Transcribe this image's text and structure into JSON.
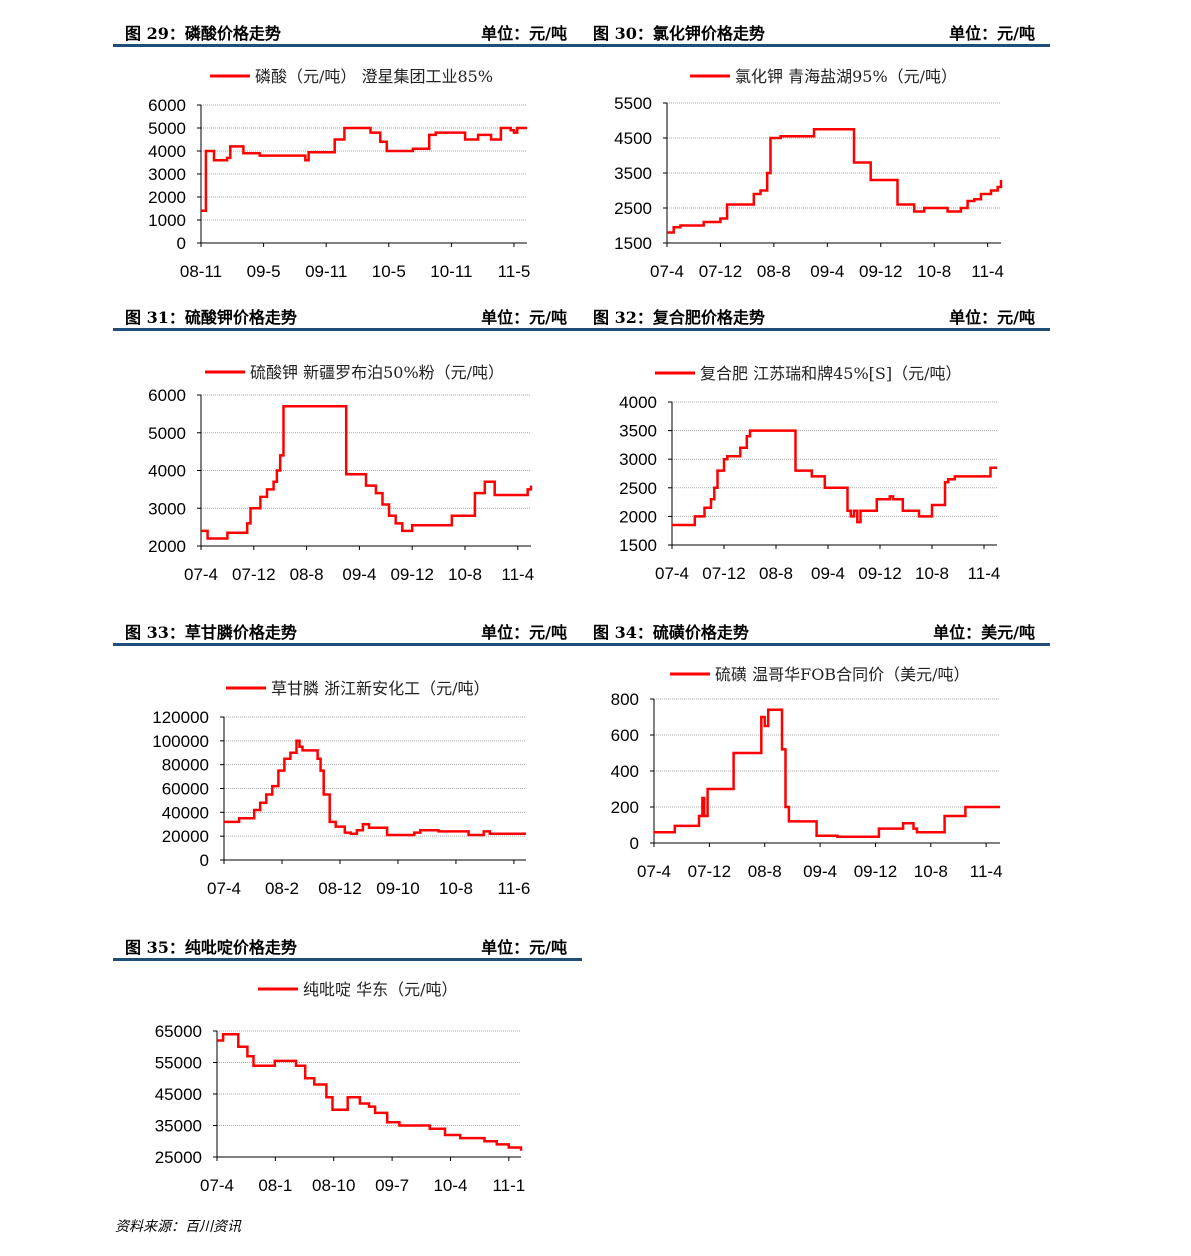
{
  "source": "资料来源：百川资讯",
  "colors": {
    "line": "#ff0000",
    "rule": "#1f4e79",
    "grid": "#aaaaaa"
  },
  "charts": [
    {
      "title": "图 29：磷酸价格走势",
      "unit": "单位：元/吨",
      "chart_data": {
        "type": "line",
        "legend": "磷酸（元/吨） 澄星集团工业85%",
        "yticks": [
          "6000",
          "5000",
          "4000",
          "3000",
          "2000",
          "1000",
          "0"
        ],
        "ylim": [
          0,
          6000
        ],
        "xticks": [
          "08-11",
          "09-5",
          "09-11",
          "10-5",
          "10-11",
          "11-5"
        ],
        "x": [
          0,
          1,
          1.5,
          3,
          4,
          8,
          9,
          12,
          13,
          18,
          31,
          32,
          33,
          40,
          41,
          43,
          44,
          50,
          52,
          55,
          57,
          64,
          65,
          69,
          70,
          72,
          80,
          81,
          84,
          85,
          88,
          89,
          91,
          92,
          95,
          96,
          97,
          100
        ],
        "y": [
          1400,
          1400,
          4000,
          4000,
          3600,
          3700,
          4200,
          4200,
          3900,
          3800,
          3800,
          3600,
          3950,
          3950,
          4500,
          4500,
          5000,
          5000,
          4800,
          4400,
          4000,
          4000,
          4100,
          4100,
          4700,
          4800,
          4800,
          4500,
          4500,
          4700,
          4700,
          4500,
          4500,
          5000,
          4900,
          4800,
          5000,
          5000
        ]
      }
    },
    {
      "title": "图 30：氯化钾价格走势",
      "unit": "单位：元/吨",
      "chart_data": {
        "type": "line",
        "legend": "氯化钾 青海盐湖95%（元/吨）",
        "yticks": [
          "5500",
          "4500",
          "3500",
          "2500",
          "1500"
        ],
        "ylim": [
          1500,
          5500
        ],
        "xticks": [
          "07-4",
          "07-12",
          "08-8",
          "09-4",
          "09-12",
          "10-8",
          "11-4"
        ],
        "x": [
          0,
          2,
          4,
          10,
          11,
          16,
          18,
          25,
          26,
          28,
          30,
          31,
          34,
          43,
          44,
          55,
          56,
          60,
          61,
          68,
          69,
          73,
          74,
          76,
          77,
          83,
          84,
          88,
          90,
          92,
          94,
          97,
          99,
          100
        ],
        "y": [
          1800,
          1950,
          2000,
          2000,
          2100,
          2200,
          2600,
          2600,
          2900,
          3000,
          3500,
          4500,
          4550,
          4550,
          4750,
          4750,
          3800,
          3800,
          3300,
          3300,
          2600,
          2600,
          2400,
          2400,
          2500,
          2500,
          2400,
          2500,
          2700,
          2750,
          2900,
          3000,
          3100,
          3300
        ]
      }
    },
    {
      "title": "图 31：硫酸钾价格走势",
      "unit": "单位：元/吨",
      "chart_data": {
        "type": "line",
        "legend": "硫酸钾 新疆罗布泊50%粉（元/吨）",
        "yticks": [
          "6000",
          "5000",
          "4000",
          "3000",
          "2000"
        ],
        "ylim": [
          2000,
          6000
        ],
        "xticks": [
          "07-4",
          "07-12",
          "08-8",
          "09-4",
          "09-12",
          "10-8",
          "11-4"
        ],
        "x": [
          0,
          2,
          7,
          8,
          13,
          14,
          15,
          17,
          18,
          20,
          22,
          23,
          24,
          25,
          43,
          44,
          49,
          50,
          53,
          55,
          57,
          59,
          61,
          63,
          64,
          75,
          76,
          82,
          83,
          85,
          86,
          88,
          89,
          98,
          99,
          100
        ],
        "y": [
          2400,
          2200,
          2200,
          2350,
          2350,
          2600,
          3000,
          3000,
          3300,
          3500,
          3700,
          4000,
          4400,
          5700,
          5700,
          3900,
          3900,
          3600,
          3400,
          3100,
          2800,
          2600,
          2400,
          2400,
          2550,
          2550,
          2800,
          2800,
          3400,
          3400,
          3700,
          3700,
          3350,
          3350,
          3500,
          3600
        ]
      }
    },
    {
      "title": "图 32：复合肥价格走势",
      "unit": "单位：元/吨",
      "chart_data": {
        "type": "line",
        "legend": "复合肥 江苏瑞和牌45%[S]（元/吨）",
        "yticks": [
          "4000",
          "3500",
          "3000",
          "2500",
          "2000",
          "1500"
        ],
        "ylim": [
          1500,
          4000
        ],
        "xticks": [
          "07-4",
          "07-12",
          "08-8",
          "09-4",
          "09-12",
          "10-8",
          "11-4"
        ],
        "x": [
          0,
          6,
          7,
          10,
          12,
          13,
          14,
          16,
          17,
          20,
          21,
          23,
          24,
          37,
          38,
          42,
          43,
          46,
          47,
          53,
          54,
          55,
          56,
          57,
          58,
          62,
          63,
          66,
          67,
          68,
          71,
          75,
          76,
          79,
          80,
          83,
          84,
          85,
          87,
          95,
          98,
          100
        ],
        "y": [
          1850,
          1850,
          2000,
          2150,
          2300,
          2500,
          2800,
          3000,
          3050,
          3050,
          3200,
          3400,
          3500,
          3500,
          2800,
          2800,
          2700,
          2700,
          2500,
          2500,
          2100,
          2000,
          2100,
          1900,
          2100,
          2100,
          2300,
          2300,
          2350,
          2300,
          2100,
          2100,
          2000,
          2000,
          2200,
          2200,
          2600,
          2650,
          2700,
          2700,
          2850,
          2850
        ]
      }
    },
    {
      "title": "图 33：草甘膦价格走势",
      "unit": "单位：元/吨",
      "chart_data": {
        "type": "line",
        "legend": "草甘膦 浙江新安化工（元/吨）",
        "yticks": [
          "120000",
          "100000",
          "80000",
          "60000",
          "40000",
          "20000",
          "0"
        ],
        "ylim": [
          0,
          120000
        ],
        "xticks": [
          "07-4",
          "08-2",
          "08-12",
          "09-10",
          "10-8",
          "11-6"
        ],
        "x": [
          0,
          5,
          8,
          10,
          12,
          14,
          16,
          18,
          20,
          22,
          24,
          25,
          26,
          29,
          31,
          32,
          33,
          35,
          37,
          40,
          42,
          44,
          46,
          48,
          53,
          54,
          62,
          63,
          65,
          70,
          71,
          80,
          81,
          85,
          86,
          88,
          100
        ],
        "y": [
          32000,
          35000,
          35000,
          42000,
          48000,
          55000,
          62000,
          75000,
          85000,
          90000,
          100000,
          95000,
          92000,
          92000,
          85000,
          75000,
          55000,
          32000,
          28000,
          23000,
          22000,
          25000,
          30000,
          27000,
          27000,
          21000,
          21000,
          23000,
          25000,
          25000,
          24000,
          24000,
          21000,
          21000,
          24000,
          22000,
          22000
        ]
      }
    },
    {
      "title": "图 34：硫磺价格走势",
      "unit": "单位：美元/吨",
      "chart_data": {
        "type": "line",
        "legend": "硫磺 温哥华FOB合同价（美元/吨）",
        "yticks": [
          "800",
          "600",
          "400",
          "200",
          "0"
        ],
        "ylim": [
          0,
          800
        ],
        "xticks": [
          "07-4",
          "07-12",
          "08-8",
          "09-4",
          "09-12",
          "10-8",
          "11-4"
        ],
        "x": [
          0,
          5,
          6,
          12,
          13,
          14,
          14.5,
          15.5,
          22,
          23,
          30,
          31,
          32,
          33,
          36,
          37,
          38,
          39,
          46,
          47,
          52,
          53,
          64,
          65,
          71,
          72,
          74,
          75,
          76,
          83,
          84,
          89,
          90,
          100
        ],
        "y": [
          60,
          60,
          95,
          95,
          150,
          250,
          150,
          300,
          300,
          500,
          500,
          700,
          650,
          740,
          740,
          520,
          200,
          120,
          120,
          40,
          40,
          35,
          35,
          80,
          80,
          110,
          110,
          80,
          60,
          60,
          150,
          150,
          200,
          200
        ]
      }
    },
    {
      "title": "图 35：纯吡啶价格走势",
      "unit": "单位：元/吨",
      "chart_data": {
        "type": "line",
        "legend": "纯吡啶 华东（元/吨）",
        "yticks": [
          "65000",
          "55000",
          "45000",
          "35000",
          "25000"
        ],
        "ylim": [
          25000,
          65000
        ],
        "xticks": [
          "07-4",
          "08-1",
          "08-10",
          "09-7",
          "10-4",
          "11-1"
        ],
        "x": [
          0,
          2,
          5,
          7,
          10,
          12,
          18,
          19,
          24,
          26,
          29,
          32,
          36,
          38,
          42,
          43,
          47,
          50,
          52,
          56,
          60,
          65,
          70,
          75,
          80,
          85,
          88,
          92,
          96,
          100
        ],
        "y": [
          62000,
          64000,
          64000,
          60000,
          57000,
          54000,
          54000,
          55500,
          55500,
          54000,
          50000,
          48000,
          44000,
          40000,
          40000,
          44000,
          42000,
          41000,
          39000,
          36000,
          35000,
          35000,
          34000,
          32000,
          31000,
          31000,
          30000,
          29000,
          28000,
          27000
        ]
      }
    }
  ]
}
